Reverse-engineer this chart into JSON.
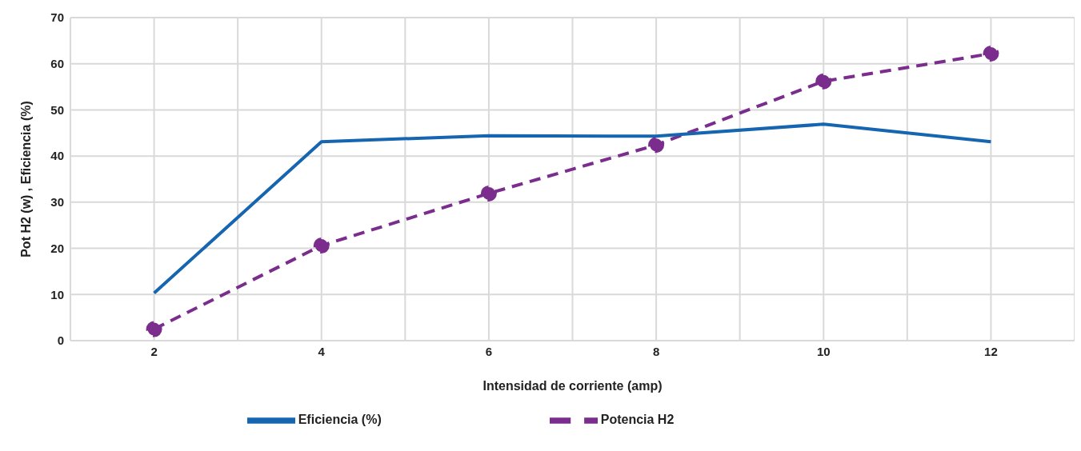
{
  "chart_data": {
    "type": "line",
    "xlabel": "Intensidad de corriente (amp)",
    "ylabel": "Pot H2 (w) ,     Eficiencia (%)",
    "x": [
      2,
      4,
      6,
      8,
      10,
      12
    ],
    "series": [
      {
        "name": "Potencia H2",
        "color": "#7b2d8e",
        "values": [
          2.5,
          20.6,
          31.9,
          42.4,
          56.2,
          62.2
        ],
        "line_style": "dashed",
        "marker": "circle"
      },
      {
        "name": "Eficiencia (%)",
        "color": "#1565b0",
        "values": [
          10.3,
          43.1,
          44.4,
          44.3,
          46.9,
          43.1
        ],
        "line_style": "solid",
        "marker": "none"
      }
    ],
    "xlim": [
      1,
      13
    ],
    "xticks": [
      {
        "value": 1,
        "label": null
      },
      2,
      {
        "value": 3,
        "label": null
      },
      4,
      {
        "value": 5,
        "label": null
      },
      6,
      {
        "value": 7,
        "label": null
      },
      8,
      {
        "value": 9,
        "label": null
      },
      10,
      {
        "value": 11,
        "label": null
      },
      12,
      {
        "value": 13,
        "label": null
      }
    ],
    "ylim": [
      0,
      70
    ],
    "yticks": [
      0,
      10,
      20,
      30,
      40,
      50,
      60,
      70
    ],
    "grid": true,
    "legend": "bottom"
  }
}
